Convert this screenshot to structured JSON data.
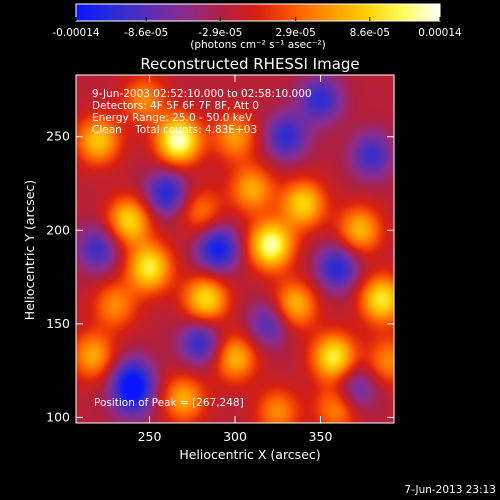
{
  "colorbar": {
    "min": -0.00014,
    "max": 0.00014,
    "tick_labels": [
      "-0.00014",
      "-8.6e-05",
      "-2.9e-05",
      "2.9e-05",
      "8.6e-05",
      "0.00014"
    ],
    "tick_values": [
      -0.00014,
      -8.6e-05,
      -2.9e-05,
      2.9e-05,
      8.6e-05,
      0.00014
    ],
    "units_label": "(photons cm⁻² s⁻¹ asec⁻²)"
  },
  "chart_data": {
    "type": "heatmap",
    "title": "Reconstructed RHESSI Image",
    "xlabel": "Heliocentric X (arcsec)",
    "ylabel": "Heliocentric Y (arcsec)",
    "xlim": [
      207,
      393
    ],
    "ylim": [
      97,
      283
    ],
    "x_ticks": [
      250,
      300,
      350
    ],
    "y_ticks": [
      100,
      150,
      200,
      250
    ],
    "colormap": [
      "#0a14ff",
      "#2a2cd6",
      "#5a2fb4",
      "#8a2c8c",
      "#b02040",
      "#d82010",
      "#ff5a00",
      "#ff9a00",
      "#ffd000",
      "#ffff60",
      "#ffffff"
    ],
    "sources": [
      {
        "x": 267,
        "y": 248,
        "amp": 1.0
      },
      {
        "x": 321,
        "y": 192,
        "amp": 0.95
      },
      {
        "x": 340,
        "y": 214,
        "amp": 0.7
      },
      {
        "x": 358,
        "y": 132,
        "amp": 0.82
      },
      {
        "x": 386,
        "y": 163,
        "amp": 0.78
      },
      {
        "x": 250,
        "y": 180,
        "amp": 0.8
      },
      {
        "x": 283,
        "y": 163,
        "amp": 0.75
      },
      {
        "x": 238,
        "y": 205,
        "amp": 0.72
      },
      {
        "x": 220,
        "y": 248,
        "amp": 0.65
      },
      {
        "x": 300,
        "y": 250,
        "amp": 0.5
      },
      {
        "x": 217,
        "y": 133,
        "amp": 0.55
      },
      {
        "x": 270,
        "y": 110,
        "amp": 0.55
      },
      {
        "x": 300,
        "y": 132,
        "amp": 0.6
      },
      {
        "x": 335,
        "y": 160,
        "amp": 0.62
      },
      {
        "x": 373,
        "y": 200,
        "amp": 0.6
      },
      {
        "x": 325,
        "y": 103,
        "amp": 0.45
      },
      {
        "x": 360,
        "y": 105,
        "amp": 0.5
      },
      {
        "x": 390,
        "y": 130,
        "amp": 0.45
      },
      {
        "x": 310,
        "y": 222,
        "amp": 0.55
      },
      {
        "x": 247,
        "y": 270,
        "amp": 0.45
      },
      {
        "x": 280,
        "y": 210,
        "amp": 0.4
      },
      {
        "x": 230,
        "y": 160,
        "amp": 0.45
      },
      {
        "x": 290,
        "y": 190,
        "amp": -0.7
      },
      {
        "x": 260,
        "y": 220,
        "amp": -0.6
      },
      {
        "x": 360,
        "y": 180,
        "amp": -0.6
      },
      {
        "x": 240,
        "y": 120,
        "amp": -0.6
      },
      {
        "x": 280,
        "y": 140,
        "amp": -0.55
      },
      {
        "x": 330,
        "y": 250,
        "amp": -0.55
      },
      {
        "x": 380,
        "y": 240,
        "amp": -0.5
      },
      {
        "x": 350,
        "y": 270,
        "amp": -0.55
      },
      {
        "x": 320,
        "y": 150,
        "amp": -0.45
      },
      {
        "x": 220,
        "y": 190,
        "amp": -0.5
      },
      {
        "x": 370,
        "y": 115,
        "amp": -0.45
      },
      {
        "x": 240,
        "y": 110,
        "amp": -0.4
      }
    ],
    "annotations": [
      " 9-Jun-2003 02:52:10.000 to 02:58:10.000",
      "Detectors: 4F 5F 6F 7F 8F, Att 0",
      "Energy Range: 25.0 - 50.0 keV",
      "Clean    Total counts: 4.83E+03"
    ],
    "peak_label": "Position of Peak = [267,248]"
  },
  "footer_date": "7-Jun-2013 23:13"
}
